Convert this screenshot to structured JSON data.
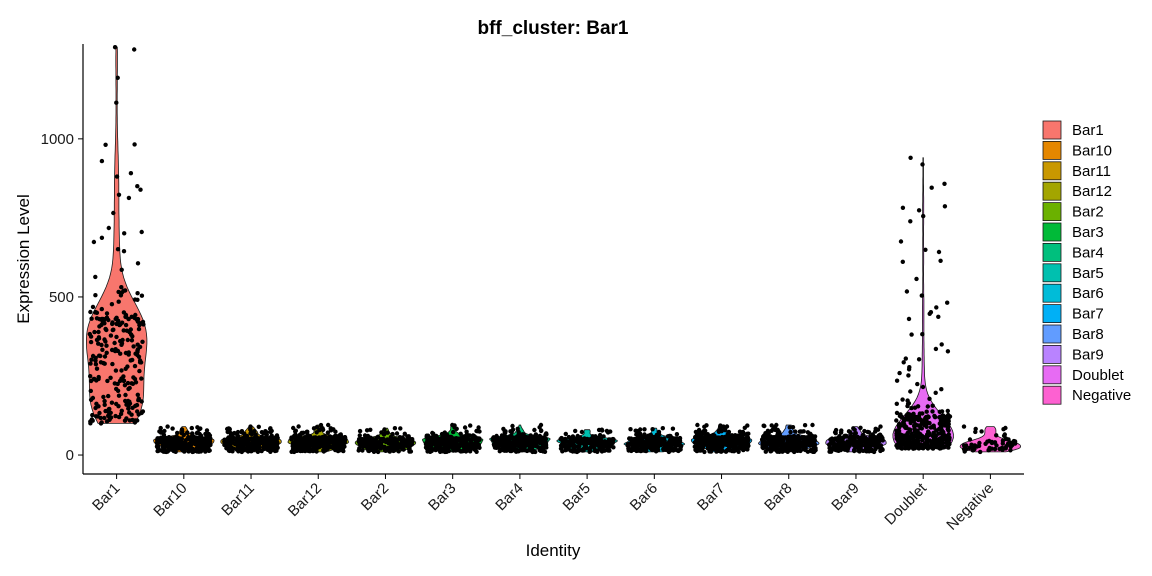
{
  "chart_data": {
    "type": "violin",
    "title": "bff_cluster: Bar1",
    "xlabel": "Identity",
    "ylabel": "Expression Level",
    "ylim": [
      -60,
      1300
    ],
    "yticks": [
      0,
      500,
      1000
    ],
    "categories": [
      "Bar1",
      "Bar10",
      "Bar11",
      "Bar12",
      "Bar2",
      "Bar3",
      "Bar4",
      "Bar5",
      "Bar6",
      "Bar7",
      "Bar8",
      "Bar9",
      "Doublet",
      "Negative"
    ],
    "colors": [
      "#F8766D",
      "#E58700",
      "#C99800",
      "#A3A500",
      "#6BB100",
      "#00BA38",
      "#00BF7D",
      "#00C0AF",
      "#00BCD8",
      "#00B0F6",
      "#619CFF",
      "#B983FF",
      "#E76BF3",
      "#FD61D1"
    ],
    "series": [
      {
        "category": "Bar1",
        "min": 100,
        "q1": 170,
        "median": 320,
        "q3": 430,
        "max": 1290,
        "n": 260
      },
      {
        "category": "Bar10",
        "min": 10,
        "q1": 30,
        "median": 40,
        "q3": 52,
        "max": 90,
        "n": 300
      },
      {
        "category": "Bar11",
        "min": 10,
        "q1": 30,
        "median": 40,
        "q3": 52,
        "max": 90,
        "n": 300
      },
      {
        "category": "Bar12",
        "min": 10,
        "q1": 30,
        "median": 42,
        "q3": 55,
        "max": 95,
        "n": 320
      },
      {
        "category": "Bar2",
        "min": 10,
        "q1": 28,
        "median": 38,
        "q3": 50,
        "max": 85,
        "n": 200
      },
      {
        "category": "Bar3",
        "min": 10,
        "q1": 30,
        "median": 40,
        "q3": 52,
        "max": 95,
        "n": 280
      },
      {
        "category": "Bar4",
        "min": 10,
        "q1": 30,
        "median": 42,
        "q3": 54,
        "max": 95,
        "n": 300
      },
      {
        "category": "Bar5",
        "min": 10,
        "q1": 30,
        "median": 40,
        "q3": 50,
        "max": 80,
        "n": 200
      },
      {
        "category": "Bar6",
        "min": 10,
        "q1": 30,
        "median": 40,
        "q3": 52,
        "max": 85,
        "n": 260
      },
      {
        "category": "Bar7",
        "min": 10,
        "q1": 30,
        "median": 42,
        "q3": 55,
        "max": 95,
        "n": 300
      },
      {
        "category": "Bar8",
        "min": 10,
        "q1": 30,
        "median": 42,
        "q3": 55,
        "max": 95,
        "n": 300
      },
      {
        "category": "Bar9",
        "min": 10,
        "q1": 30,
        "median": 40,
        "q3": 52,
        "max": 90,
        "n": 260
      },
      {
        "category": "Doublet",
        "min": 20,
        "q1": 40,
        "median": 70,
        "q3": 120,
        "max": 940,
        "n": 420
      },
      {
        "category": "Negative",
        "min": 10,
        "q1": 25,
        "median": 35,
        "q3": 50,
        "max": 90,
        "n": 60
      }
    ],
    "legend": {
      "position": "right",
      "entries": [
        "Bar1",
        "Bar10",
        "Bar11",
        "Bar12",
        "Bar2",
        "Bar3",
        "Bar4",
        "Bar5",
        "Bar6",
        "Bar7",
        "Bar8",
        "Bar9",
        "Doublet",
        "Negative"
      ]
    },
    "grid": false
  }
}
